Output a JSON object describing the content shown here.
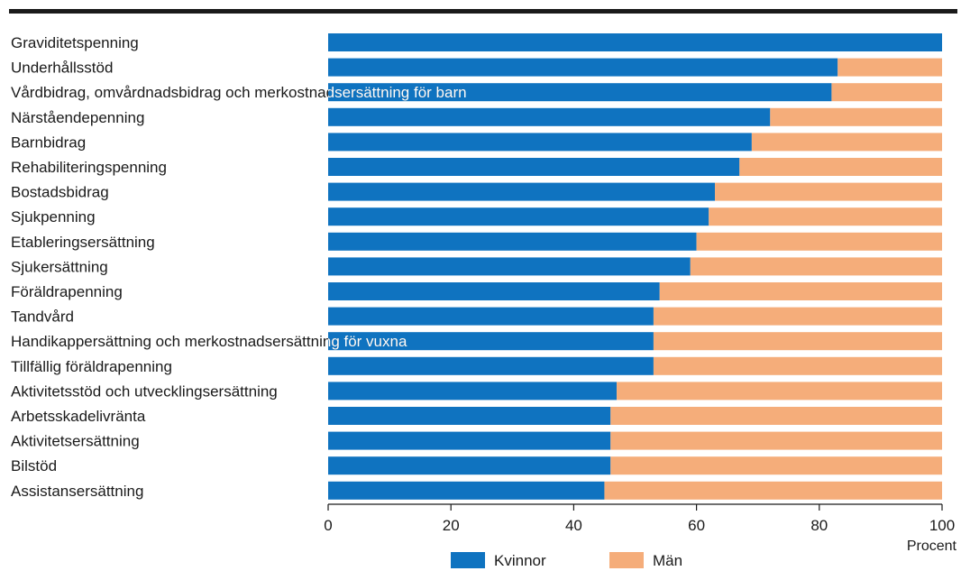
{
  "chart_data": {
    "type": "bar",
    "orientation": "horizontal",
    "stacked": true,
    "title": "",
    "xlabel": "Procent",
    "ylabel": "",
    "xlim": [
      0,
      100
    ],
    "xticks": [
      0,
      20,
      40,
      60,
      80,
      100
    ],
    "grid": false,
    "legend_position": "bottom",
    "categories": [
      "Graviditetspenning",
      "Underhållsstöd",
      "Vårdbidrag, omvårdnadsbidrag och merkostnadsersättning för barn",
      "Närståendepenning",
      "Barnbidrag",
      "Rehabiliteringspenning",
      "Bostadsbidrag",
      "Sjukpenning",
      "Etableringsersättning",
      "Sjukersättning",
      "Föräldrapenning",
      "Tandvård",
      "Handikappersättning och merkostnadsersättning för vuxna",
      "Tillfällig föräldrapenning",
      "Aktivitetsstöd och utvecklingsersättning",
      "Arbetsskadelivränta",
      "Aktivitetsersättning",
      "Bilstöd",
      "Assistansersättning"
    ],
    "series": [
      {
        "name": "Kvinnor",
        "color": "#0f73c0",
        "values": [
          100,
          83,
          82,
          72,
          69,
          67,
          63,
          62,
          60,
          59,
          54,
          53,
          53,
          53,
          47,
          46,
          46,
          46,
          45
        ]
      },
      {
        "name": "Män",
        "color": "#f5ad7a",
        "values": [
          0,
          17,
          18,
          28,
          31,
          33,
          37,
          38,
          40,
          41,
          46,
          47,
          47,
          47,
          53,
          54,
          54,
          54,
          55
        ]
      }
    ]
  }
}
